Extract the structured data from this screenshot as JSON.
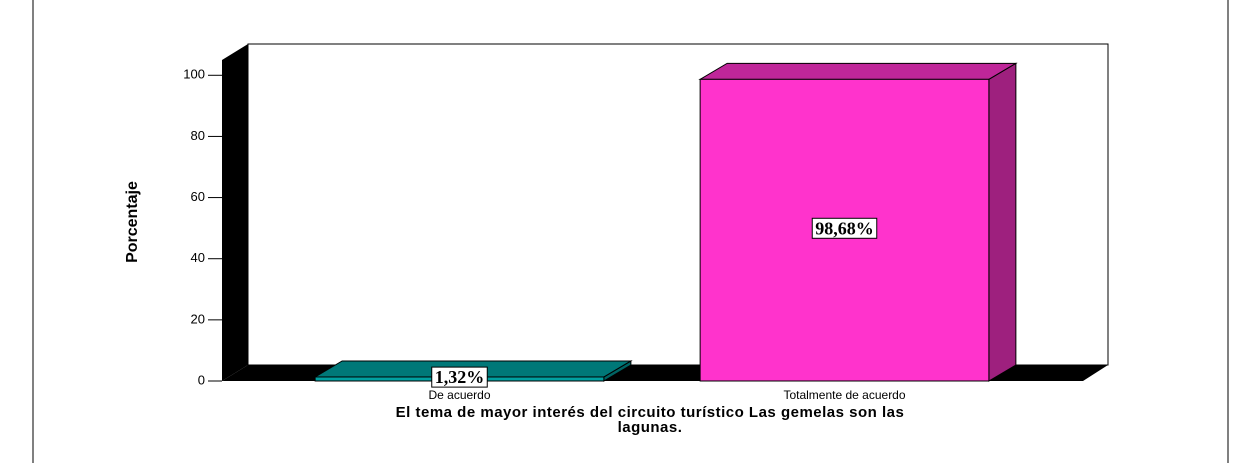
{
  "chart_data": {
    "type": "bar3d",
    "x_label": "El tema de mayor interés del circuito turístico Las gemelas son las lagunas.",
    "y_label": "Porcentaje",
    "categories": [
      "De acuerdo",
      "Totalmente de acuerdo"
    ],
    "values": [
      1.32,
      98.68
    ],
    "value_labels": [
      "1,32%",
      "98,68%"
    ],
    "colors": [
      "#00a0a0",
      "#ff33cc"
    ],
    "ylim": [
      0,
      105
    ],
    "yticks": [
      0,
      20,
      40,
      60,
      80,
      100
    ]
  }
}
